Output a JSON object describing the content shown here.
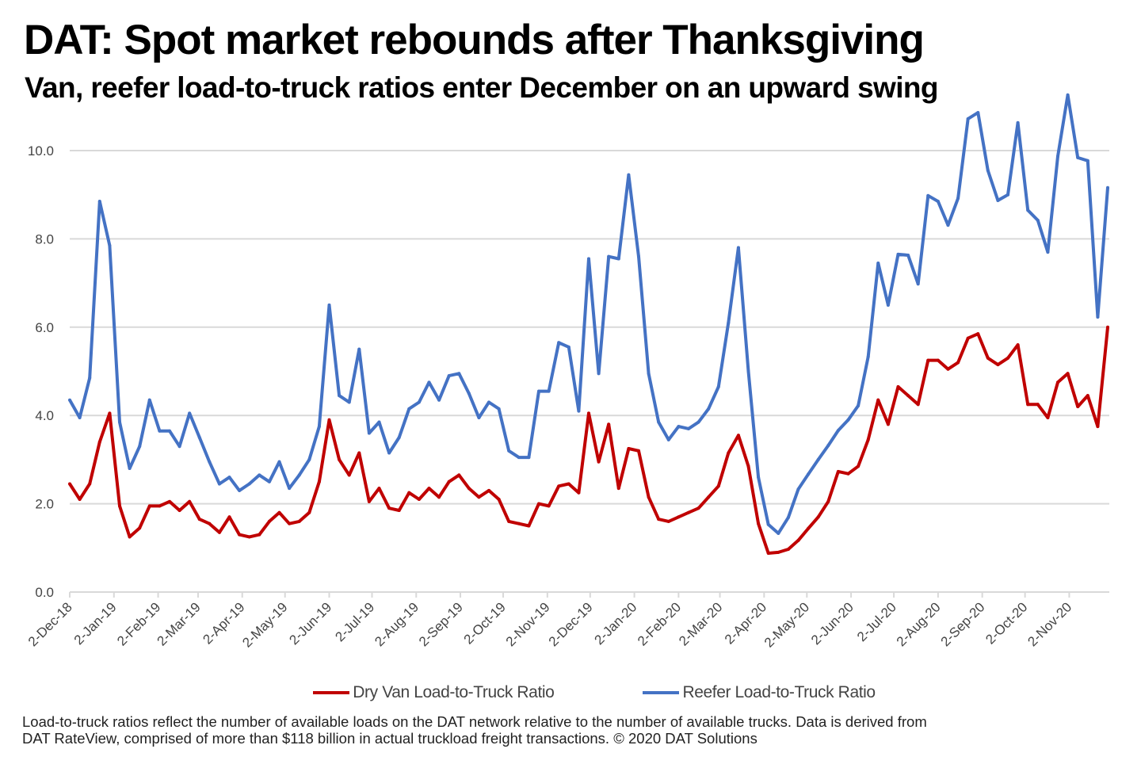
{
  "title": "DAT: Spot market rebounds after Thanksgiving",
  "subtitle": "Van, reefer load-to-truck ratios enter December on an upward swing",
  "footer": {
    "line1": "Load-to-truck ratios reflect the number of available loads on the DAT network relative to the number of available trucks. Data is derived from",
    "line2": "DAT RateView, comprised of more than $118 billion in actual truckload freight transactions. © 2020 DAT Solutions"
  },
  "chart_data": {
    "type": "line",
    "title": "",
    "xlabel": "",
    "ylabel": "",
    "ylim": [
      0,
      11.3
    ],
    "yticks": [
      "0.0",
      "2.0",
      "4.0",
      "6.0",
      "8.0",
      "10.0"
    ],
    "ytick_values": [
      0,
      2,
      4,
      6,
      8,
      10
    ],
    "grid": true,
    "legend_position": "bottom",
    "xtick_labels": [
      "2-Dec-18",
      "2-Jan-19",
      "2-Feb-19",
      "2-Mar-19",
      "2-Apr-19",
      "2-May-19",
      "2-Jun-19",
      "2-Jul-19",
      "2-Aug-19",
      "2-Sep-19",
      "2-Oct-19",
      "2-Nov-19",
      "2-Dec-19",
      "2-Jan-20",
      "2-Feb-20",
      "2-Mar-20",
      "2-Apr-20",
      "2-May-20",
      "2-Jun-20",
      "2-Jul-20",
      "2-Aug-20",
      "2-Sep-20",
      "2-Oct-20",
      "2-Nov-20"
    ],
    "xtick_dates": [
      "2018-12-02",
      "2019-01-02",
      "2019-02-02",
      "2019-03-02",
      "2019-04-02",
      "2019-05-02",
      "2019-06-02",
      "2019-07-02",
      "2019-08-02",
      "2019-09-02",
      "2019-10-02",
      "2019-11-02",
      "2019-12-02",
      "2020-01-02",
      "2020-02-02",
      "2020-03-02",
      "2020-04-02",
      "2020-05-02",
      "2020-06-02",
      "2020-07-02",
      "2020-08-02",
      "2020-09-02",
      "2020-10-02",
      "2020-11-02"
    ],
    "x": [
      "2018-12-02",
      "2018-12-09",
      "2018-12-16",
      "2018-12-23",
      "2018-12-30",
      "2019-01-06",
      "2019-01-13",
      "2019-01-20",
      "2019-01-27",
      "2019-02-03",
      "2019-02-10",
      "2019-02-17",
      "2019-02-24",
      "2019-03-03",
      "2019-03-10",
      "2019-03-17",
      "2019-03-24",
      "2019-03-31",
      "2019-04-07",
      "2019-04-14",
      "2019-04-21",
      "2019-04-28",
      "2019-05-05",
      "2019-05-12",
      "2019-05-19",
      "2019-05-26",
      "2019-06-02",
      "2019-06-09",
      "2019-06-16",
      "2019-06-23",
      "2019-06-30",
      "2019-07-07",
      "2019-07-14",
      "2019-07-21",
      "2019-07-28",
      "2019-08-04",
      "2019-08-11",
      "2019-08-18",
      "2019-08-25",
      "2019-09-01",
      "2019-09-08",
      "2019-09-15",
      "2019-09-22",
      "2019-09-29",
      "2019-10-06",
      "2019-10-13",
      "2019-10-20",
      "2019-10-27",
      "2019-11-03",
      "2019-11-10",
      "2019-11-17",
      "2019-11-24",
      "2019-12-01",
      "2019-12-08",
      "2019-12-15",
      "2019-12-22",
      "2019-12-29",
      "2020-01-05",
      "2020-01-12",
      "2020-01-19",
      "2020-01-26",
      "2020-02-02",
      "2020-02-09",
      "2020-02-16",
      "2020-02-23",
      "2020-03-01",
      "2020-03-08",
      "2020-03-15",
      "2020-03-22",
      "2020-03-29",
      "2020-04-05",
      "2020-04-12",
      "2020-04-19",
      "2020-04-26",
      "2020-05-03",
      "2020-05-10",
      "2020-05-17",
      "2020-05-24",
      "2020-05-31",
      "2020-06-07",
      "2020-06-14",
      "2020-06-21",
      "2020-06-28",
      "2020-07-05",
      "2020-07-12",
      "2020-07-19",
      "2020-07-26",
      "2020-08-02",
      "2020-08-09",
      "2020-08-16",
      "2020-08-23",
      "2020-08-30",
      "2020-09-06",
      "2020-09-13",
      "2020-09-20",
      "2020-09-27",
      "2020-10-04",
      "2020-10-11",
      "2020-10-18",
      "2020-10-25",
      "2020-11-01",
      "2020-11-08",
      "2020-11-15",
      "2020-11-22",
      "2020-11-29"
    ],
    "series": [
      {
        "name": "Dry Van Load-to-Truck Ratio",
        "color": "#C00000",
        "values": [
          2.45,
          2.1,
          2.45,
          3.4,
          4.05,
          1.95,
          1.25,
          1.45,
          1.95,
          1.95,
          2.05,
          1.85,
          2.05,
          1.65,
          1.55,
          1.35,
          1.7,
          1.3,
          1.25,
          1.3,
          1.6,
          1.8,
          1.55,
          1.6,
          1.8,
          2.5,
          3.9,
          3.0,
          2.65,
          3.15,
          2.05,
          2.35,
          1.9,
          1.85,
          2.25,
          2.1,
          2.35,
          2.15,
          2.5,
          2.65,
          2.35,
          2.15,
          2.3,
          2.1,
          1.6,
          1.55,
          1.5,
          2.0,
          1.95,
          2.4,
          2.45,
          2.25,
          4.05,
          2.95,
          3.8,
          2.35,
          3.25,
          3.2,
          2.15,
          1.65,
          1.6,
          1.7,
          1.8,
          1.9,
          2.15,
          2.4,
          3.15,
          3.55,
          2.85,
          1.55,
          0.88,
          0.9,
          0.97,
          1.17,
          1.44,
          1.7,
          2.05,
          2.73,
          2.68,
          2.85,
          3.45,
          4.35,
          3.8,
          4.65,
          4.45,
          4.25,
          5.25,
          5.25,
          5.05,
          5.2,
          5.75,
          5.85,
          5.3,
          5.15,
          5.3,
          5.6,
          4.25,
          4.25,
          3.95,
          4.75,
          4.95,
          4.2,
          4.45,
          3.75,
          6.0
        ]
      },
      {
        "name": "Reefer Load-to-Truck Ratio",
        "color": "#4472C4",
        "values": [
          4.35,
          3.95,
          4.85,
          8.85,
          7.85,
          3.85,
          2.8,
          3.3,
          4.35,
          3.65,
          3.65,
          3.3,
          4.05,
          3.5,
          2.95,
          2.45,
          2.6,
          2.3,
          2.45,
          2.65,
          2.5,
          2.95,
          2.35,
          2.65,
          3.0,
          3.75,
          6.5,
          4.45,
          4.3,
          5.5,
          3.6,
          3.85,
          3.15,
          3.5,
          4.15,
          4.3,
          4.75,
          4.35,
          4.9,
          4.95,
          4.5,
          3.95,
          4.3,
          4.15,
          3.2,
          3.05,
          3.05,
          4.55,
          4.55,
          5.65,
          5.55,
          4.1,
          7.55,
          4.95,
          7.6,
          7.55,
          9.45,
          7.6,
          4.95,
          3.85,
          3.45,
          3.75,
          3.7,
          3.85,
          4.15,
          4.65,
          6.1,
          7.8,
          5.0,
          2.6,
          1.53,
          1.33,
          1.69,
          2.33,
          2.67,
          3.0,
          3.32,
          3.66,
          3.9,
          4.22,
          5.33,
          7.45,
          6.5,
          7.65,
          7.63,
          6.98,
          8.98,
          8.85,
          8.31,
          8.92,
          10.72,
          10.86,
          9.55,
          8.87,
          9.0,
          10.63,
          8.65,
          8.42,
          7.7,
          9.87,
          11.26,
          9.84,
          9.77,
          6.23,
          9.16
        ]
      }
    ]
  }
}
